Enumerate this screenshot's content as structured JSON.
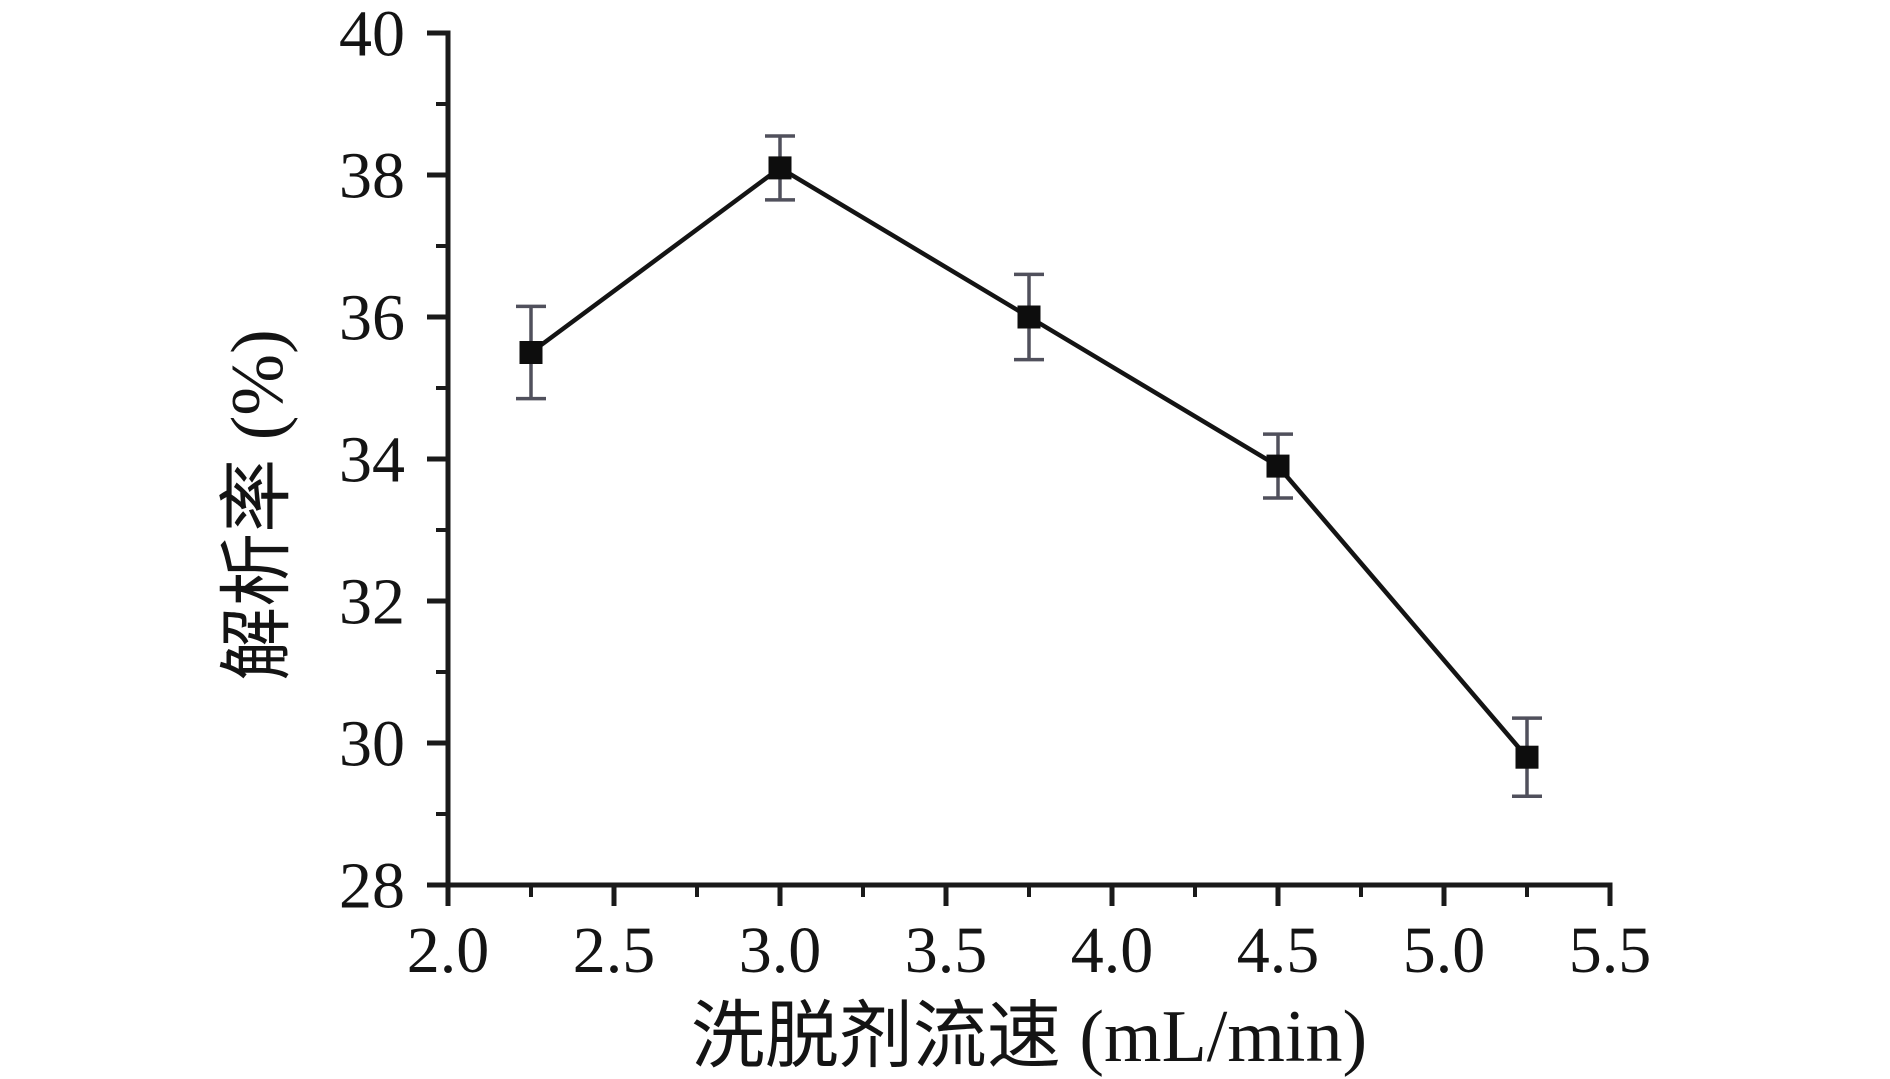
{
  "chart_data": {
    "type": "line",
    "title": "",
    "xlabel": "洗脱剂流速 (mL/min)",
    "ylabel": "解析率 (%)",
    "x": [
      2.25,
      3.0,
      3.75,
      4.5,
      5.25
    ],
    "y": [
      35.5,
      38.1,
      36.0,
      33.9,
      29.8
    ],
    "y_err": [
      0.65,
      0.45,
      0.6,
      0.45,
      0.55
    ],
    "xlim": [
      2.0,
      5.5
    ],
    "ylim": [
      28,
      40
    ],
    "x_major_ticks": [
      2.0,
      2.5,
      3.0,
      3.5,
      4.0,
      4.5,
      5.0,
      5.5
    ],
    "x_tick_labels": [
      "2.0",
      "2.5",
      "3.0",
      "3.5",
      "4.0",
      "4.5",
      "5.0",
      "5.5"
    ],
    "x_minor_step": 0.25,
    "y_major_ticks": [
      28,
      30,
      32,
      34,
      36,
      38,
      40
    ],
    "y_tick_labels": [
      "28",
      "30",
      "32",
      "34",
      "36",
      "38",
      "40"
    ],
    "y_minor_step": 1,
    "marker": "square",
    "grid": false,
    "legend": null,
    "colors": {
      "axis": "#1a1a1a",
      "line": "#141414",
      "marker": "#0d0d0d",
      "error_bar": "#50505c",
      "tick_label": "#141414"
    }
  }
}
